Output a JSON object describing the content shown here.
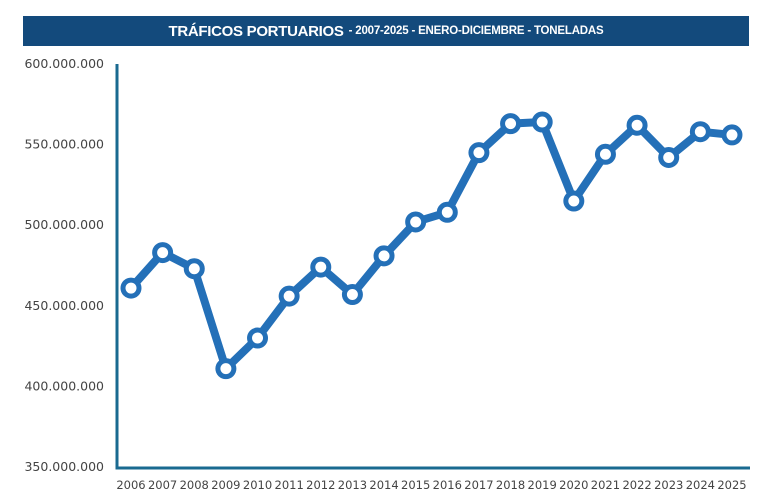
{
  "chart_data": {
    "type": "line",
    "title": "TRÁFICOS PORTUARIOS",
    "subtitle": "- 2007-2025 - ENERO-DICIEMBRE - TONELADAS",
    "xlabel": "",
    "ylabel": "",
    "ylim": [
      350000000,
      600000000
    ],
    "yticks": [
      350000000,
      400000000,
      450000000,
      500000000,
      550000000,
      600000000
    ],
    "ytick_labels": [
      "350.000.000",
      "400.000.000",
      "450.000.000",
      "500.000.000",
      "550.000.000",
      "600.000.000"
    ],
    "grid": false,
    "categories": [
      "2006",
      "2007",
      "2008",
      "2009",
      "2010",
      "2011",
      "2012",
      "2013",
      "2014",
      "2015",
      "2016",
      "2017",
      "2018",
      "2019",
      "2020",
      "2021",
      "2022",
      "2023",
      "2024",
      "2025"
    ],
    "values": [
      461000000,
      483000000,
      473000000,
      411000000,
      430000000,
      456000000,
      474000000,
      457000000,
      481000000,
      502000000,
      508000000,
      545000000,
      563000000,
      564000000,
      515000000,
      544000000,
      562000000,
      542000000,
      558000000,
      556000000
    ],
    "colors": {
      "line": "#2470b8",
      "axis": "#1a6a90",
      "banner": "#134a7c"
    }
  }
}
